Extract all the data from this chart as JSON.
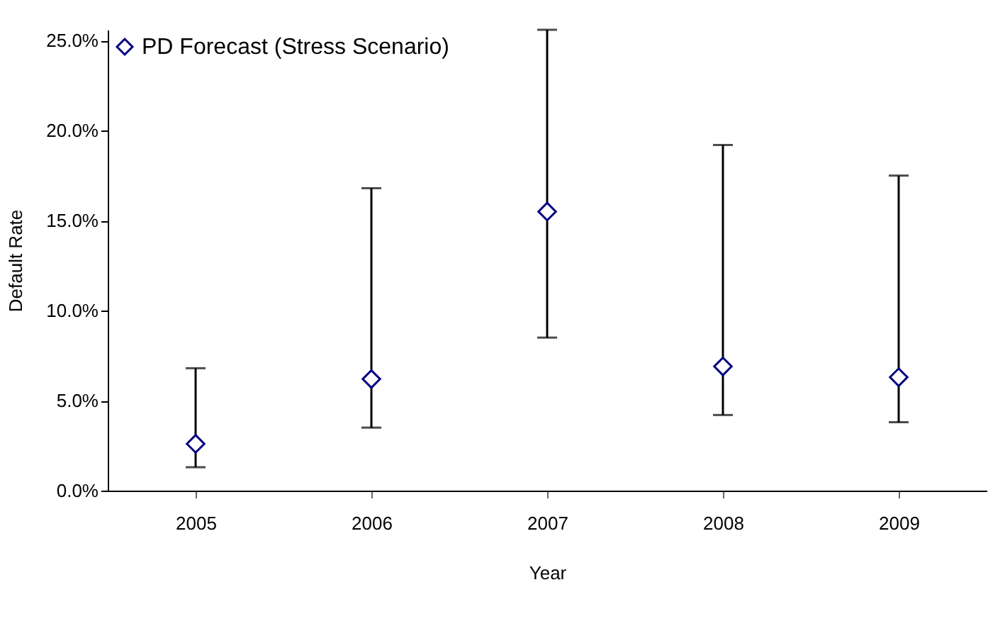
{
  "chart_data": {
    "type": "scatter",
    "xlabel": "Year",
    "ylabel": "Default Rate",
    "categories": [
      "2005",
      "2006",
      "2007",
      "2008",
      "2009"
    ],
    "series": [
      {
        "name": "PD Forecast (Stress Scenario)",
        "color": "#000080",
        "values": [
          2.6,
          6.2,
          15.5,
          6.9,
          6.3
        ],
        "errors": [
          [
            1.3,
            6.8
          ],
          [
            3.5,
            16.8
          ],
          [
            8.5,
            25.6
          ],
          [
            4.2,
            19.2
          ],
          [
            3.8,
            17.5
          ]
        ]
      }
    ],
    "ylim": [
      0,
      25.6
    ],
    "yticks": [
      {
        "value": 0,
        "label": "0.0%"
      },
      {
        "value": 5,
        "label": "5.0%"
      },
      {
        "value": 10,
        "label": "10.0%"
      },
      {
        "value": 15,
        "label": "15.0%"
      },
      {
        "value": 20,
        "label": "20.0%"
      },
      {
        "value": 25,
        "label": "25.0%"
      }
    ],
    "marker": "diamond",
    "legend": "top left",
    "grid": false
  }
}
